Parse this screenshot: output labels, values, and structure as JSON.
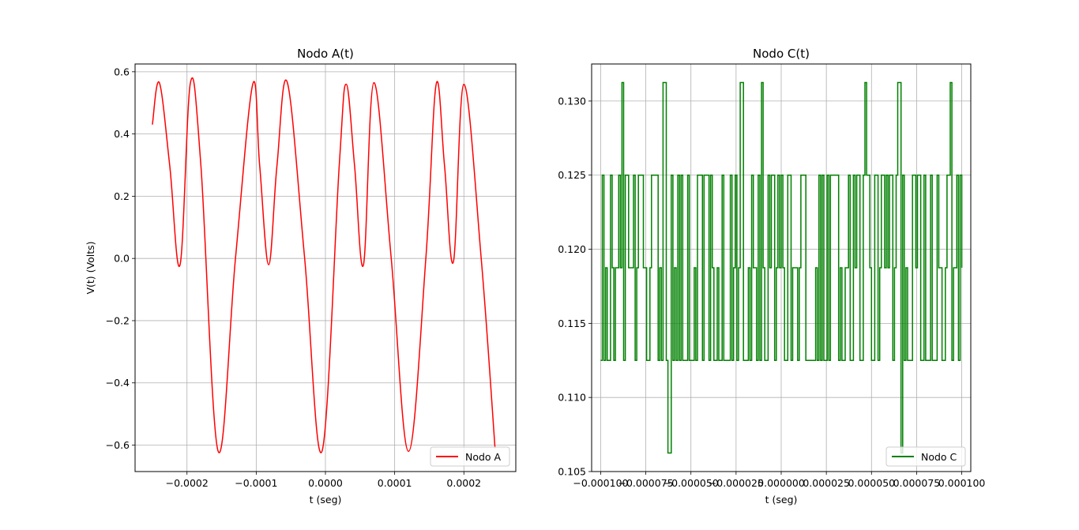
{
  "chart_data": [
    {
      "type": "line",
      "title": "Nodo A(t)",
      "xlabel": "t (seg)",
      "ylabel": "V(t) (Volts)",
      "xlim": [
        -0.000275,
        0.000275
      ],
      "ylim": [
        -0.685,
        0.625
      ],
      "xticks": [
        -0.0002,
        -0.0001,
        0.0,
        0.0001,
        0.0002
      ],
      "xtick_labels": [
        "−0.0002",
        "−0.0001",
        "0.0000",
        "0.0001",
        "0.0002"
      ],
      "yticks": [
        -0.6,
        -0.4,
        -0.2,
        0.0,
        0.2,
        0.4,
        0.6
      ],
      "ytick_labels": [
        "−0.6",
        "−0.4",
        "−0.2",
        "0.0",
        "0.2",
        "0.4",
        "0.6"
      ],
      "grid": true,
      "legend": "lower-right",
      "series": [
        {
          "name": "Nodo A",
          "color": "#ff0000",
          "x": [
            -0.00025,
            -0.00024,
            -0.000225,
            -0.00021,
            -0.000195,
            -0.00018,
            -0.000155,
            -0.00013,
            -0.000105,
            -9.5e-05,
            -8.2e-05,
            -7e-05,
            -5.5e-05,
            -3e-05,
            -5e-06,
            2e-05,
            3e-05,
            4.2e-05,
            5.5e-05,
            7e-05,
            9.5e-05,
            0.00012,
            0.000145,
            0.00016,
            0.000172,
            0.000185,
            0.0002,
            0.000225,
            0.000245
          ],
          "y": [
            0.43,
            0.565,
            0.3,
            -0.02,
            0.565,
            0.3,
            -0.62,
            0.0,
            0.56,
            0.3,
            -0.02,
            0.3,
            0.565,
            0.0,
            -0.62,
            0.3,
            0.56,
            0.3,
            -0.02,
            0.565,
            0.0,
            -0.62,
            0.0,
            0.56,
            0.3,
            -0.01,
            0.56,
            0.0,
            -0.61
          ]
        }
      ]
    },
    {
      "type": "line",
      "title": "Nodo C(t)",
      "xlabel": "t (seg)",
      "xlim": [
        -0.000105,
        0.000105
      ],
      "ylim": [
        0.105,
        0.1325
      ],
      "xticks": [
        -0.0001,
        -7.5e-05,
        -5e-05,
        -2.5e-05,
        0.0,
        2.5e-05,
        5e-05,
        7.5e-05,
        0.0001
      ],
      "xtick_labels": [
        "−0.000100",
        "−0.000075",
        "−0.000050",
        "−0.000025",
        "0.000000",
        "0.000025",
        "0.000050",
        "0.000075",
        "0.000100"
      ],
      "yticks": [
        0.105,
        0.11,
        0.115,
        0.12,
        0.125,
        0.13
      ],
      "ytick_labels": [
        "0.105",
        "0.110",
        "0.115",
        "0.120",
        "0.125",
        "0.130"
      ],
      "grid": true,
      "legend": "lower-right",
      "levels": [
        0.10625,
        0.1125,
        0.11875,
        0.125,
        0.13125
      ],
      "series": [
        {
          "name": "Nodo C",
          "color": "#008000",
          "x_start": -0.0001,
          "x_end": 0.0001,
          "baseline": 0.11875,
          "quantum": 0.00625,
          "samples": 220,
          "spikes_high_x": [
            -8.8e-05,
            -6.5e-05,
            -2.3e-05,
            -2.2e-05,
            -1.1e-05,
            4.6e-05,
            6.5e-05,
            9.4e-05
          ],
          "spikes_low_x": [
            -6.3e-05,
            -6.2e-05,
            6.6e-05
          ]
        }
      ]
    }
  ]
}
